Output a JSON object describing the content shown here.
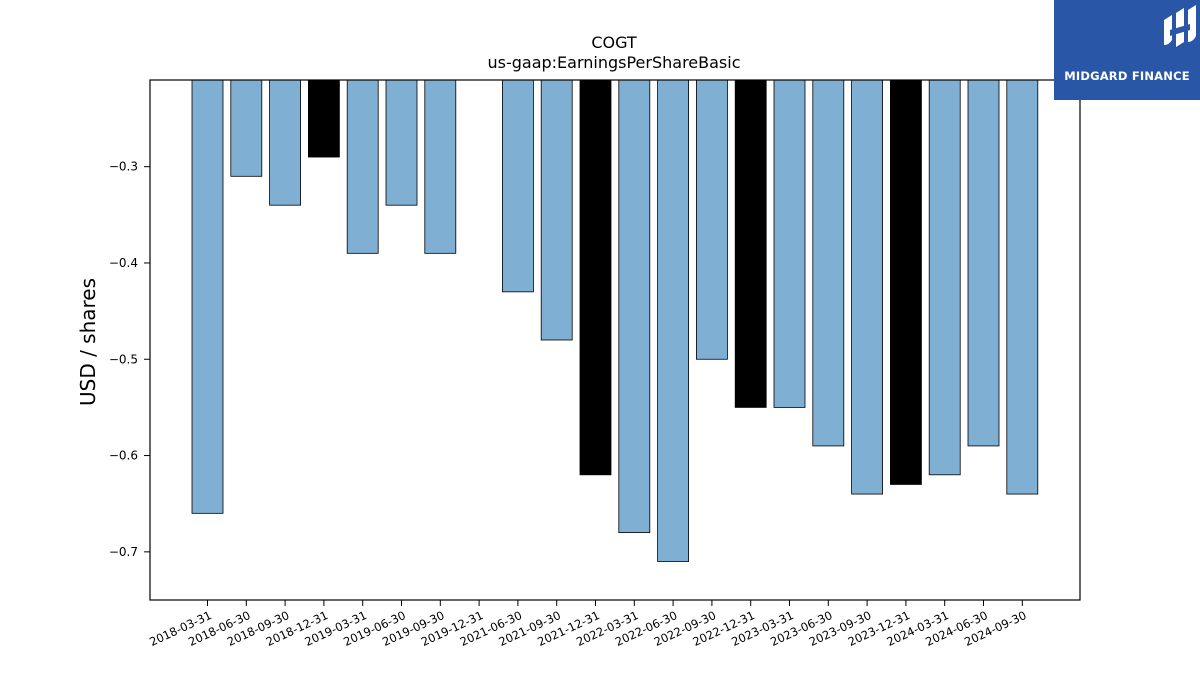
{
  "chart_data": {
    "type": "bar",
    "title": "COGT",
    "subtitle": "us-gaap:EarningsPerShareBasic",
    "xlabel": "",
    "ylabel": "USD / shares",
    "ylim": [
      -0.75,
      -0.21
    ],
    "yticks": [
      -0.3,
      -0.4,
      -0.5,
      -0.6,
      -0.7
    ],
    "ytick_labels": [
      "−0.3",
      "−0.4",
      "−0.5",
      "−0.6",
      "−0.7"
    ],
    "grid": false,
    "categories": [
      "2018-03-31",
      "2018-06-30",
      "2018-09-30",
      "2018-12-31",
      "2019-03-31",
      "2019-06-30",
      "2019-09-30",
      "2019-12-31",
      "2021-06-30",
      "2021-09-30",
      "2021-12-31",
      "2022-03-31",
      "2022-06-30",
      "2022-09-30",
      "2022-12-31",
      "2023-03-31",
      "2023-06-30",
      "2023-09-30",
      "2023-12-31",
      "2024-03-31",
      "2024-06-30",
      "2024-09-30"
    ],
    "values": [
      -0.66,
      -0.31,
      -0.34,
      -0.29,
      -0.39,
      -0.34,
      -0.39,
      null,
      -0.43,
      -0.48,
      -0.62,
      -0.68,
      -0.71,
      -0.5,
      -0.55,
      -0.55,
      -0.59,
      -0.64,
      -0.63,
      -0.62,
      -0.59,
      -0.64
    ],
    "bar_colors": [
      "#7fafd3",
      "#7fafd3",
      "#7fafd3",
      "#000000",
      "#7fafd3",
      "#7fafd3",
      "#7fafd3",
      "#7fafd3",
      "#7fafd3",
      "#7fafd3",
      "#000000",
      "#7fafd3",
      "#7fafd3",
      "#7fafd3",
      "#000000",
      "#7fafd3",
      "#7fafd3",
      "#7fafd3",
      "#000000",
      "#7fafd3",
      "#7fafd3",
      "#7fafd3"
    ]
  },
  "brand": {
    "name": "MIDGARD FINANCE",
    "color": "#2a56a8"
  }
}
